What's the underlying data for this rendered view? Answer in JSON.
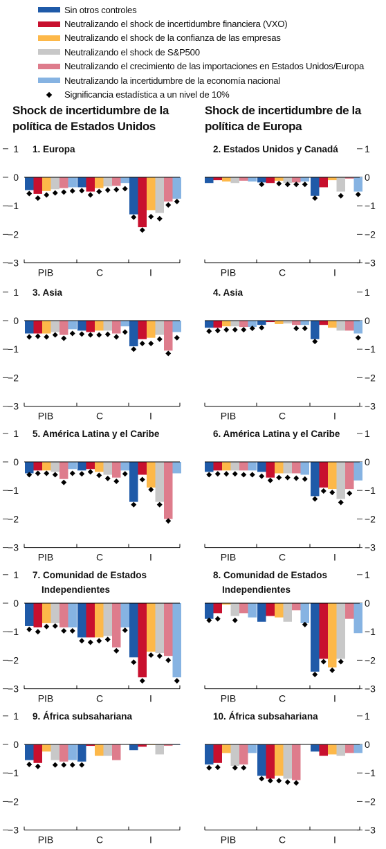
{
  "legend": [
    {
      "label": "Sin otros controles",
      "color": "#1f5aa8"
    },
    {
      "label": "Neutralizando el shock de incertidumbre financiera (VXO)",
      "color": "#c8102e"
    },
    {
      "label": "Neutralizando el shock de la confianza de las empresas",
      "color": "#fdb849"
    },
    {
      "label": "Neutralizando el shock de S&P500",
      "color": "#c8c8c8"
    },
    {
      "label": "Neutralizando el crecimiento de las importaciones en Estados Unidos/Europa",
      "color": "#de7c8c"
    },
    {
      "label": "Neutralizando la incertidumbre de la economía nacional",
      "color": "#86b3e2"
    },
    {
      "label": "Significancia estadística a un nivel de 10%",
      "marker": "diamond",
      "color": "#000000"
    }
  ],
  "columns": {
    "left_title": "Shock de incertidumbre de la política de Estados Unidos",
    "right_title": "Shock de incertidumbre de la política de Europa"
  },
  "chart_data": [
    {
      "type": "bar",
      "title": "1. Europa",
      "categories": [
        "PIB",
        "C",
        "I"
      ],
      "ylim": [
        -3,
        1
      ],
      "yticks": [
        "1",
        "0",
        "−1",
        "−2",
        "−3"
      ],
      "axis_side": "left",
      "values": [
        [
          -0.45,
          -0.58,
          -0.48,
          -0.42,
          -0.38,
          -0.35
        ],
        [
          -0.35,
          -0.5,
          -0.38,
          -0.32,
          -0.3,
          -0.2
        ],
        [
          -1.3,
          -1.75,
          -1.15,
          -1.25,
          -0.85,
          -0.75
        ]
      ],
      "significant": [
        [
          -0.57,
          -0.73,
          -0.62,
          -0.55,
          -0.52,
          -0.48
        ],
        [
          -0.47,
          -0.62,
          -0.5,
          -0.45,
          -0.43,
          -0.4
        ],
        [
          -1.4,
          -1.85,
          -1.38,
          -1.45,
          -0.97,
          -0.85
        ]
      ]
    },
    {
      "type": "bar",
      "title": "2. Estados Unidos y Canadá",
      "categories": [
        "PIB",
        "C",
        "I"
      ],
      "ylim": [
        -3,
        1
      ],
      "yticks": [
        "1",
        "0",
        "−1",
        "−2",
        "−3"
      ],
      "axis_side": "right",
      "values": [
        [
          -0.2,
          -0.1,
          -0.15,
          -0.2,
          -0.12,
          -0.15
        ],
        [
          -0.18,
          -0.2,
          -0.12,
          -0.2,
          -0.18,
          -0.15
        ],
        [
          -0.65,
          -0.35,
          -0.1,
          -0.5,
          -0.05,
          -0.5
        ]
      ],
      "significant": [
        [
          null,
          null,
          null,
          null,
          null,
          null
        ],
        [
          -0.25,
          null,
          -0.22,
          -0.25,
          -0.25,
          -0.25
        ],
        [
          -0.73,
          null,
          null,
          -0.65,
          null,
          -0.6
        ]
      ]
    },
    {
      "type": "bar",
      "title": "3. Asia",
      "categories": [
        "PIB",
        "C",
        "I"
      ],
      "ylim": [
        -3,
        1
      ],
      "yticks": [
        "1",
        "0",
        "−1",
        "−2",
        "−3"
      ],
      "axis_side": "left",
      "values": [
        [
          -0.45,
          -0.45,
          -0.45,
          -0.4,
          -0.5,
          -0.3
        ],
        [
          -0.35,
          -0.4,
          -0.35,
          -0.35,
          -0.45,
          -0.2
        ],
        [
          -0.9,
          -0.65,
          -0.6,
          -0.5,
          -1.05,
          -0.4
        ]
      ],
      "significant": [
        [
          -0.57,
          -0.55,
          -0.57,
          -0.5,
          -0.62,
          -0.45
        ],
        [
          -0.47,
          -0.5,
          -0.5,
          -0.48,
          -0.57,
          -0.4
        ],
        [
          -1.0,
          -0.8,
          -0.8,
          -0.65,
          -1.15,
          -0.6
        ]
      ]
    },
    {
      "type": "bar",
      "title": "4. Asia",
      "categories": [
        "PIB",
        "C",
        "I"
      ],
      "ylim": [
        -3,
        1
      ],
      "yticks": [
        "1",
        "0",
        "−1",
        "−2",
        "−3"
      ],
      "axis_side": "right",
      "values": [
        [
          -0.25,
          -0.25,
          -0.2,
          -0.2,
          -0.22,
          -0.22
        ],
        [
          -0.15,
          -0.05,
          -0.12,
          -0.1,
          -0.15,
          -0.15
        ],
        [
          -0.65,
          -0.15,
          -0.25,
          -0.35,
          -0.35,
          -0.45
        ]
      ],
      "significant": [
        [
          -0.37,
          -0.35,
          -0.32,
          -0.32,
          -0.32,
          -0.27
        ],
        [
          -0.25,
          null,
          null,
          null,
          -0.27,
          -0.27
        ],
        [
          -0.73,
          null,
          null,
          null,
          null,
          -0.6
        ]
      ]
    },
    {
      "type": "bar",
      "title": "5. América Latina y el Caribe",
      "categories": [
        "PIB",
        "C",
        "I"
      ],
      "ylim": [
        -3,
        1
      ],
      "yticks": [
        "1",
        "0",
        "−1",
        "−2",
        "−3"
      ],
      "axis_side": "left",
      "values": [
        [
          -0.4,
          -0.3,
          -0.3,
          -0.35,
          -0.6,
          -0.25
        ],
        [
          -0.3,
          -0.25,
          -0.35,
          -0.45,
          -0.55,
          -0.3
        ],
        [
          -1.4,
          -0.45,
          -0.9,
          -1.4,
          -2.0,
          -0.4
        ]
      ],
      "significant": [
        [
          -0.45,
          -0.4,
          -0.4,
          -0.45,
          -0.72,
          -0.4
        ],
        [
          -0.42,
          -0.35,
          -0.47,
          -0.58,
          -0.68,
          -0.42
        ],
        [
          -1.5,
          -0.62,
          -0.97,
          -1.5,
          -2.07,
          null
        ]
      ]
    },
    {
      "type": "bar",
      "title": "6. América Latina y el Caribe",
      "categories": [
        "PIB",
        "C",
        "I"
      ],
      "ylim": [
        -3,
        1
      ],
      "yticks": [
        "1",
        "0",
        "−1",
        "−2",
        "−3"
      ],
      "axis_side": "right",
      "values": [
        [
          -0.35,
          -0.3,
          -0.3,
          -0.3,
          -0.3,
          -0.3
        ],
        [
          -0.35,
          -0.55,
          -0.4,
          -0.4,
          -0.4,
          -0.45
        ],
        [
          -1.2,
          -0.9,
          -0.95,
          -1.3,
          -0.95,
          -0.65
        ]
      ],
      "significant": [
        [
          -0.45,
          -0.42,
          -0.42,
          -0.42,
          -0.45,
          -0.45
        ],
        [
          -0.5,
          -0.65,
          -0.55,
          -0.55,
          -0.57,
          -0.6
        ],
        [
          -1.3,
          -1.02,
          -1.07,
          -1.42,
          -1.1,
          null
        ]
      ]
    },
    {
      "type": "bar",
      "title": "7. Comunidad de Estados Independientes",
      "categories": [
        "PIB",
        "C",
        "I"
      ],
      "ylim": [
        -3,
        1
      ],
      "yticks": [
        "1",
        "0",
        "−1",
        "−2",
        "−3"
      ],
      "axis_side": "left",
      "values": [
        [
          -0.8,
          -0.85,
          -0.7,
          -0.7,
          -0.85,
          -0.85
        ],
        [
          -1.2,
          -1.2,
          -1.2,
          -1.15,
          -1.55,
          -0.85
        ],
        [
          -1.9,
          -2.6,
          -1.7,
          -1.75,
          -1.85,
          -2.6
        ]
      ],
      "significant": [
        [
          -0.92,
          -1.0,
          -0.82,
          -0.8,
          -0.97,
          -0.97
        ],
        [
          -1.32,
          -1.37,
          -1.32,
          -1.27,
          -1.67,
          -0.95
        ],
        [
          -2.07,
          -2.72,
          -1.82,
          -1.85,
          -2.0,
          -2.72
        ]
      ]
    },
    {
      "type": "bar",
      "title": "8. Comunidad de Estados Independientes",
      "categories": [
        "PIB",
        "C",
        "I"
      ],
      "ylim": [
        -3,
        1
      ],
      "yticks": [
        "1",
        "0",
        "−1",
        "−2",
        "−3"
      ],
      "axis_side": "right",
      "values": [
        [
          -0.55,
          -0.35,
          -0.05,
          -0.45,
          -0.35,
          -0.5
        ],
        [
          -0.65,
          -0.45,
          -0.5,
          -0.65,
          -0.25,
          -0.7
        ],
        [
          -2.4,
          -1.95,
          -2.25,
          -1.95,
          -0.55,
          -1.05
        ]
      ],
      "significant": [
        [
          -0.6,
          -0.55,
          null,
          -0.6,
          null,
          null
        ],
        [
          null,
          null,
          null,
          null,
          null,
          -0.75
        ],
        [
          -2.5,
          -2.05,
          -2.35,
          -2.05,
          null,
          null
        ]
      ]
    },
    {
      "type": "bar",
      "title": "9. África subsahariana",
      "categories": [
        "PIB",
        "C",
        "I"
      ],
      "ylim": [
        -3,
        1
      ],
      "yticks": [
        "1",
        "0",
        "−1",
        "−2",
        "−3"
      ],
      "axis_side": "left",
      "values": [
        [
          -0.55,
          -0.65,
          -0.25,
          -0.55,
          -0.6,
          -0.55
        ],
        [
          -0.6,
          -0.05,
          -0.4,
          -0.4,
          -0.55,
          null
        ],
        [
          -0.2,
          -0.08,
          -0.02,
          -0.35,
          -0.05,
          -0.02
        ]
      ],
      "significant": [
        [
          -0.7,
          -0.77,
          null,
          -0.72,
          -0.72,
          -0.72
        ],
        [
          -0.72,
          null,
          null,
          null,
          null,
          null
        ],
        [
          null,
          null,
          null,
          null,
          null,
          null
        ]
      ]
    },
    {
      "type": "bar",
      "title": "10. África subsahariana",
      "categories": [
        "PIB",
        "C",
        "I"
      ],
      "ylim": [
        -3,
        1
      ],
      "yticks": [
        "1",
        "0",
        "−1",
        "−2",
        "−3"
      ],
      "axis_side": "right",
      "values": [
        [
          -0.7,
          -0.65,
          -0.3,
          -0.75,
          -0.7,
          -0.3
        ],
        [
          -1.1,
          -1.2,
          -1.1,
          -1.2,
          -1.25,
          null
        ],
        [
          -0.25,
          -0.4,
          -0.35,
          -0.4,
          -0.3,
          -0.3
        ]
      ],
      "significant": [
        [
          -0.82,
          -0.8,
          null,
          -0.82,
          -0.82,
          null
        ],
        [
          -1.2,
          -1.27,
          -1.27,
          -1.32,
          -1.35,
          null
        ],
        [
          null,
          null,
          null,
          null,
          null,
          null
        ]
      ]
    }
  ]
}
